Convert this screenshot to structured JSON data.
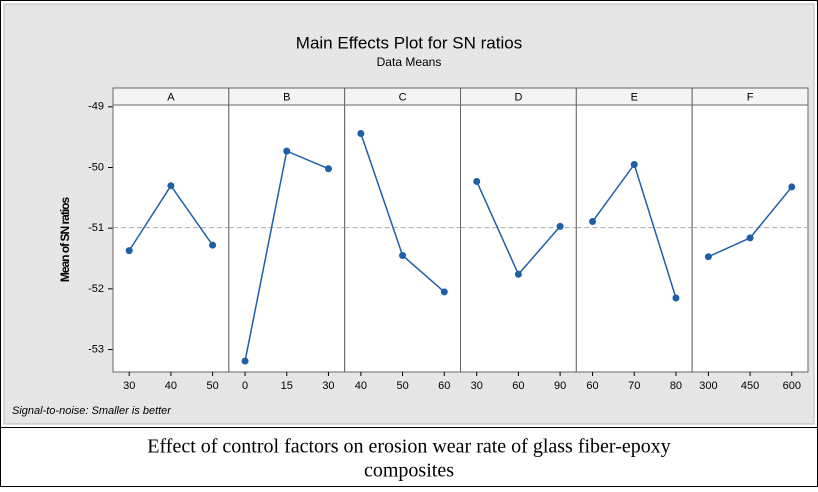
{
  "chart_data": {
    "type": "line",
    "title": "Main Effects Plot for SN ratios",
    "subtitle": "Data Means",
    "ylabel": "Mean of SN ratios",
    "footnote": "Signal-to-noise: Smaller is better",
    "ylim": [
      -53.37,
      -48.97
    ],
    "yticks": [
      -53,
      -52,
      -51,
      -50,
      -49
    ],
    "grid": false,
    "reference_line": -50.99,
    "color": "#1f5fa8",
    "panels": [
      {
        "name": "A",
        "categories": [
          "30",
          "40",
          "50"
        ],
        "values": [
          -51.37,
          -50.3,
          -51.28
        ]
      },
      {
        "name": "B",
        "categories": [
          "0",
          "15",
          "30"
        ],
        "values": [
          -53.19,
          -49.73,
          -50.02
        ]
      },
      {
        "name": "C",
        "categories": [
          "40",
          "50",
          "60"
        ],
        "values": [
          -49.44,
          -51.45,
          -52.05
        ]
      },
      {
        "name": "D",
        "categories": [
          "30",
          "60",
          "90"
        ],
        "values": [
          -50.23,
          -51.76,
          -50.97
        ]
      },
      {
        "name": "E",
        "categories": [
          "60",
          "70",
          "80"
        ],
        "values": [
          -50.89,
          -49.95,
          -52.15
        ]
      },
      {
        "name": "F",
        "categories": [
          "300",
          "450",
          "600"
        ],
        "values": [
          -51.47,
          -51.16,
          -50.32
        ]
      }
    ]
  },
  "caption": [
    "Effect of control factors on erosion wear rate of glass fiber-epoxy",
    "composites"
  ]
}
